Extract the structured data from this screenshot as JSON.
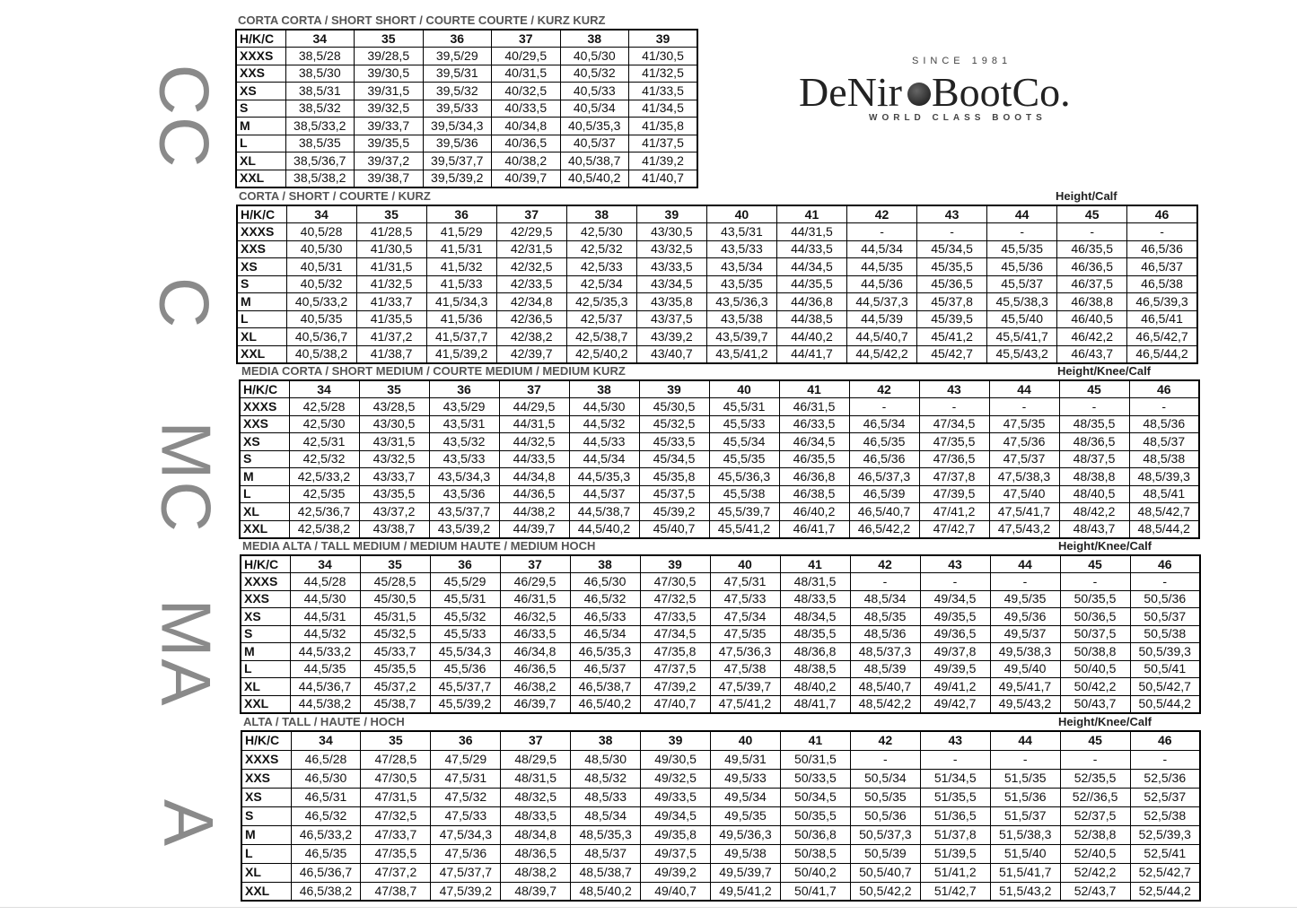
{
  "logo": {
    "since": "SINCE 1981",
    "name_left": "DeNir",
    "name_right": "BootCo.",
    "tagline": "WORLD CLASS BOOTS"
  },
  "sections": [
    {
      "side": "CC",
      "title": "CORTA CORTA / SHORT SHORT / COURTE COURTE / KURZ KURZ",
      "header": [
        "H/K/C",
        "34",
        "35",
        "36",
        "37",
        "38",
        "39"
      ],
      "rows": [
        [
          "XXXS",
          "38,5/28",
          "39/28,5",
          "39,5/29",
          "40/29,5",
          "40,5/30",
          "41/30,5"
        ],
        [
          "XXS",
          "38,5/30",
          "39/30,5",
          "39,5/31",
          "40/31,5",
          "40,5/32",
          "41/32,5"
        ],
        [
          "XS",
          "38,5/31",
          "39/31,5",
          "39,5/32",
          "40/32,5",
          "40,5/33",
          "41/33,5"
        ],
        [
          "S",
          "38,5/32",
          "39/32,5",
          "39,5/33",
          "40/33,5",
          "40,5/34",
          "41/34,5"
        ],
        [
          "M",
          "38,5/33,2",
          "39/33,7",
          "39,5/34,3",
          "40/34,8",
          "40,5/35,3",
          "41/35,8"
        ],
        [
          "L",
          "38,5/35",
          "39/35,5",
          "39,5/36",
          "40/36,5",
          "40,5/37",
          "41/37,5"
        ],
        [
          "XL",
          "38,5/36,7",
          "39/37,2",
          "39,5/37,7",
          "40/38,2",
          "40,5/38,7",
          "41/39,2"
        ],
        [
          "XXL",
          "38,5/38,2",
          "39/38,7",
          "39,5/39,2",
          "40/39,7",
          "40,5/40,2",
          "41/40,7"
        ]
      ]
    },
    {
      "side": "C",
      "title": "CORTA / SHORT / COURTE / KURZ",
      "note": "Height/Calf",
      "header": [
        "H/K/C",
        "34",
        "35",
        "36",
        "37",
        "38",
        "39",
        "40",
        "41",
        "42",
        "43",
        "44",
        "45",
        "46"
      ],
      "rows": [
        [
          "XXXS",
          "40,5/28",
          "41/28,5",
          "41,5/29",
          "42/29,5",
          "42,5/30",
          "43/30,5",
          "43,5/31",
          "44/31,5",
          "-",
          "-",
          "-",
          "-",
          "-"
        ],
        [
          "XXS",
          "40,5/30",
          "41/30,5",
          "41,5/31",
          "42/31,5",
          "42,5/32",
          "43/32,5",
          "43,5/33",
          "44/33,5",
          "44,5/34",
          "45/34,5",
          "45,5/35",
          "46/35,5",
          "46,5/36"
        ],
        [
          "XS",
          "40,5/31",
          "41/31,5",
          "41,5/32",
          "42/32,5",
          "42,5/33",
          "43/33,5",
          "43,5/34",
          "44/34,5",
          "44,5/35",
          "45/35,5",
          "45,5/36",
          "46/36,5",
          "46,5/37"
        ],
        [
          "S",
          "40,5/32",
          "41/32,5",
          "41,5/33",
          "42/33,5",
          "42,5/34",
          "43/34,5",
          "43,5/35",
          "44/35,5",
          "44,5/36",
          "45/36,5",
          "45,5/37",
          "46/37,5",
          "46,5/38"
        ],
        [
          "M",
          "40,5/33,2",
          "41/33,7",
          "41,5/34,3",
          "42/34,8",
          "42,5/35,3",
          "43/35,8",
          "43,5/36,3",
          "44/36,8",
          "44,5/37,3",
          "45/37,8",
          "45,5/38,3",
          "46/38,8",
          "46,5/39,3"
        ],
        [
          "L",
          "40,5/35",
          "41/35,5",
          "41,5/36",
          "42/36,5",
          "42,5/37",
          "43/37,5",
          "43,5/38",
          "44/38,5",
          "44,5/39",
          "45/39,5",
          "45,5/40",
          "46/40,5",
          "46,5/41"
        ],
        [
          "XL",
          "40,5/36,7",
          "41/37,2",
          "41,5/37,7",
          "42/38,2",
          "42,5/38,7",
          "43/39,2",
          "43,5/39,7",
          "44/40,2",
          "44,5/40,7",
          "45/41,2",
          "45,5/41,7",
          "46/42,2",
          "46,5/42,7"
        ],
        [
          "XXL",
          "40,5/38,2",
          "41/38,7",
          "41,5/39,2",
          "42/39,7",
          "42,5/40,2",
          "43/40,7",
          "43,5/41,2",
          "44/41,7",
          "44,5/42,2",
          "45/42,7",
          "45,5/43,2",
          "46/43,7",
          "46,5/44,2"
        ]
      ]
    },
    {
      "side": "MC",
      "title": "MEDIA CORTA / SHORT MEDIUM / COURTE MEDIUM / MEDIUM KURZ",
      "note": "Height/Knee/Calf",
      "header": [
        "H/K/C",
        "34",
        "35",
        "36",
        "37",
        "38",
        "39",
        "40",
        "41",
        "42",
        "43",
        "44",
        "45",
        "46"
      ],
      "rows": [
        [
          "XXXS",
          "42,5/28",
          "43/28,5",
          "43,5/29",
          "44/29,5",
          "44,5/30",
          "45/30,5",
          "45,5/31",
          "46/31,5",
          "-",
          "-",
          "-",
          "-",
          "-"
        ],
        [
          "XXS",
          "42,5/30",
          "43/30,5",
          "43,5/31",
          "44/31,5",
          "44,5/32",
          "45/32,5",
          "45,5/33",
          "46/33,5",
          "46,5/34",
          "47/34,5",
          "47,5/35",
          "48/35,5",
          "48,5/36"
        ],
        [
          "XS",
          "42,5/31",
          "43/31,5",
          "43,5/32",
          "44/32,5",
          "44,5/33",
          "45/33,5",
          "45,5/34",
          "46/34,5",
          "46,5/35",
          "47/35,5",
          "47,5/36",
          "48/36,5",
          "48,5/37"
        ],
        [
          "S",
          "42,5/32",
          "43/32,5",
          "43,5/33",
          "44/33,5",
          "44,5/34",
          "45/34,5",
          "45,5/35",
          "46/35,5",
          "46,5/36",
          "47/36,5",
          "47,5/37",
          "48/37,5",
          "48,5/38"
        ],
        [
          "M",
          "42,5/33,2",
          "43/33,7",
          "43,5/34,3",
          "44/34,8",
          "44,5/35,3",
          "45/35,8",
          "45,5/36,3",
          "46/36,8",
          "46,5/37,3",
          "47/37,8",
          "47,5/38,3",
          "48/38,8",
          "48,5/39,3"
        ],
        [
          "L",
          "42,5/35",
          "43/35,5",
          "43,5/36",
          "44/36,5",
          "44,5/37",
          "45/37,5",
          "45,5/38",
          "46/38,5",
          "46,5/39",
          "47/39,5",
          "47,5/40",
          "48/40,5",
          "48,5/41"
        ],
        [
          "XL",
          "42,5/36,7",
          "43/37,2",
          "43,5/37,7",
          "44/38,2",
          "44,5/38,7",
          "45/39,2",
          "45,5/39,7",
          "46/40,2",
          "46,5/40,7",
          "47/41,2",
          "47,5/41,7",
          "48/42,2",
          "48,5/42,7"
        ],
        [
          "XXL",
          "42,5/38,2",
          "43/38,7",
          "43,5/39,2",
          "44/39,7",
          "44,5/40,2",
          "45/40,7",
          "45,5/41,2",
          "46/41,7",
          "46,5/42,2",
          "47/42,7",
          "47,5/43,2",
          "48/43,7",
          "48,5/44,2"
        ]
      ]
    },
    {
      "side": "MA",
      "title": "MEDIA ALTA / TALL MEDIUM / MEDIUM HAUTE / MEDIUM HOCH",
      "note": "Height/Knee/Calf",
      "header": [
        "H/K/C",
        "34",
        "35",
        "36",
        "37",
        "38",
        "39",
        "40",
        "41",
        "42",
        "43",
        "44",
        "45",
        "46"
      ],
      "rows": [
        [
          "XXXS",
          "44,5/28",
          "45/28,5",
          "45,5/29",
          "46/29,5",
          "46,5/30",
          "47/30,5",
          "47,5/31",
          "48/31,5",
          "-",
          "-",
          "-",
          "-",
          "-"
        ],
        [
          "XXS",
          "44,5/30",
          "45/30,5",
          "45,5/31",
          "46/31,5",
          "46,5/32",
          "47/32,5",
          "47,5/33",
          "48/33,5",
          "48,5/34",
          "49/34,5",
          "49,5/35",
          "50/35,5",
          "50,5/36"
        ],
        [
          "XS",
          "44,5/31",
          "45/31,5",
          "45,5/32",
          "46/32,5",
          "46,5/33",
          "47/33,5",
          "47,5/34",
          "48/34,5",
          "48,5/35",
          "49/35,5",
          "49,5/36",
          "50/36,5",
          "50,5/37"
        ],
        [
          "S",
          "44,5/32",
          "45/32,5",
          "45,5/33",
          "46/33,5",
          "46,5/34",
          "47/34,5",
          "47,5/35",
          "48/35,5",
          "48,5/36",
          "49/36,5",
          "49,5/37",
          "50/37,5",
          "50,5/38"
        ],
        [
          "M",
          "44,5/33,2",
          "45/33,7",
          "45,5/34,3",
          "46/34,8",
          "46,5/35,3",
          "47/35,8",
          "47,5/36,3",
          "48/36,8",
          "48,5/37,3",
          "49/37,8",
          "49,5/38,3",
          "50/38,8",
          "50,5/39,3"
        ],
        [
          "L",
          "44,5/35",
          "45/35,5",
          "45,5/36",
          "46/36,5",
          "46,5/37",
          "47/37,5",
          "47,5/38",
          "48/38,5",
          "48,5/39",
          "49/39,5",
          "49,5/40",
          "50/40,5",
          "50,5/41"
        ],
        [
          "XL",
          "44,5/36,7",
          "45/37,2",
          "45,5/37,7",
          "46/38,2",
          "46,5/38,7",
          "47/39,2",
          "47,5/39,7",
          "48/40,2",
          "48,5/40,7",
          "49/41,2",
          "49,5/41,7",
          "50/42,2",
          "50,5/42,7"
        ],
        [
          "XXL",
          "44,5/38,2",
          "45/38,7",
          "45,5/39,2",
          "46/39,7",
          "46,5/40,2",
          "47/40,7",
          "47,5/41,2",
          "48/41,7",
          "48,5/42,2",
          "49/42,7",
          "49,5/43,2",
          "50/43,7",
          "50,5/44,2"
        ]
      ]
    },
    {
      "side": "A",
      "title": "ALTA / TALL / HAUTE / HOCH",
      "note": "Height/Knee/Calf",
      "header": [
        "H/K/C",
        "34",
        "35",
        "36",
        "37",
        "38",
        "39",
        "40",
        "41",
        "42",
        "43",
        "44",
        "45",
        "46"
      ],
      "rows": [
        [
          "XXXS",
          "46,5/28",
          "47/28,5",
          "47,5/29",
          "48/29,5",
          "48,5/30",
          "49/30,5",
          "49,5/31",
          "50/31,5",
          "-",
          "-",
          "-",
          "-",
          "-"
        ],
        [
          "XXS",
          "46,5/30",
          "47/30,5",
          "47,5/31",
          "48/31,5",
          "48,5/32",
          "49/32,5",
          "49,5/33",
          "50/33,5",
          "50,5/34",
          "51/34,5",
          "51,5/35",
          "52/35,5",
          "52,5/36"
        ],
        [
          "XS",
          "46,5/31",
          "47/31,5",
          "47,5/32",
          "48/32,5",
          "48,5/33",
          "49/33,5",
          "49,5/34",
          "50/34,5",
          "50,5/35",
          "51/35,5",
          "51,5/36",
          "52//36,5",
          "52,5/37"
        ],
        [
          "S",
          "46,5/32",
          "47/32,5",
          "47,5/33",
          "48/33,5",
          "48,5/34",
          "49/34,5",
          "49,5/35",
          "50/35,5",
          "50,5/36",
          "51/36,5",
          "51,5/37",
          "52/37,5",
          "52,5/38"
        ],
        [
          "M",
          "46,5/33,2",
          "47/33,7",
          "47,5/34,3",
          "48/34,8",
          "48,5/35,3",
          "49/35,8",
          "49,5/36,3",
          "50/36,8",
          "50,5/37,3",
          "51/37,8",
          "51,5/38,3",
          "52/38,8",
          "52,5/39,3"
        ],
        [
          "L",
          "46,5/35",
          "47/35,5",
          "47,5/36",
          "48/36,5",
          "48,5/37",
          "49/37,5",
          "49,5/38",
          "50/38,5",
          "50,5/39",
          "51/39,5",
          "51,5/40",
          "52/40,5",
          "52,5/41"
        ],
        [
          "XL",
          "46,5/36,7",
          "47/37,2",
          "47,5/37,7",
          "48/38,2",
          "48,5/38,7",
          "49/39,2",
          "49,5/39,7",
          "50/40,2",
          "50,5/40,7",
          "51/41,2",
          "51,5/41,7",
          "52/42,2",
          "52,5/42,7"
        ],
        [
          "XXL",
          "46,5/38,2",
          "47/38,7",
          "47,5/39,2",
          "48/39,7",
          "48,5/40,2",
          "49/40,7",
          "49,5/41,2",
          "50/41,7",
          "50,5/42,2",
          "51/42,7",
          "51,5/43,2",
          "52/43,7",
          "52,5/44,2"
        ]
      ]
    }
  ]
}
